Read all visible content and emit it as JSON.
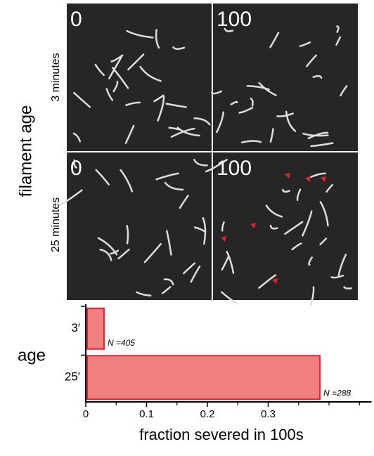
{
  "figure": {
    "ylabel": "filament age",
    "rows": [
      "3 minutes",
      "25 minutes"
    ],
    "panels": [
      {
        "label": "0"
      },
      {
        "label": "100"
      },
      {
        "label": "0"
      },
      {
        "label": "100"
      }
    ]
  },
  "chart_data": {
    "type": "barh",
    "ylabel": "age",
    "xlabel": "fraction severed in 100s",
    "categories": [
      "3′",
      "25′"
    ],
    "values": [
      0.03,
      0.385
    ],
    "annotations": [
      "N =405",
      "N =288"
    ],
    "color": "#f08080",
    "edgecolor": "#e8202a",
    "xlim": [
      0,
      0.47
    ],
    "xticks": [
      0,
      0.1,
      0.2,
      0.3
    ],
    "minor_xticks": [
      0.05,
      0.15,
      0.25,
      0.35,
      0.4,
      0.45
    ]
  }
}
